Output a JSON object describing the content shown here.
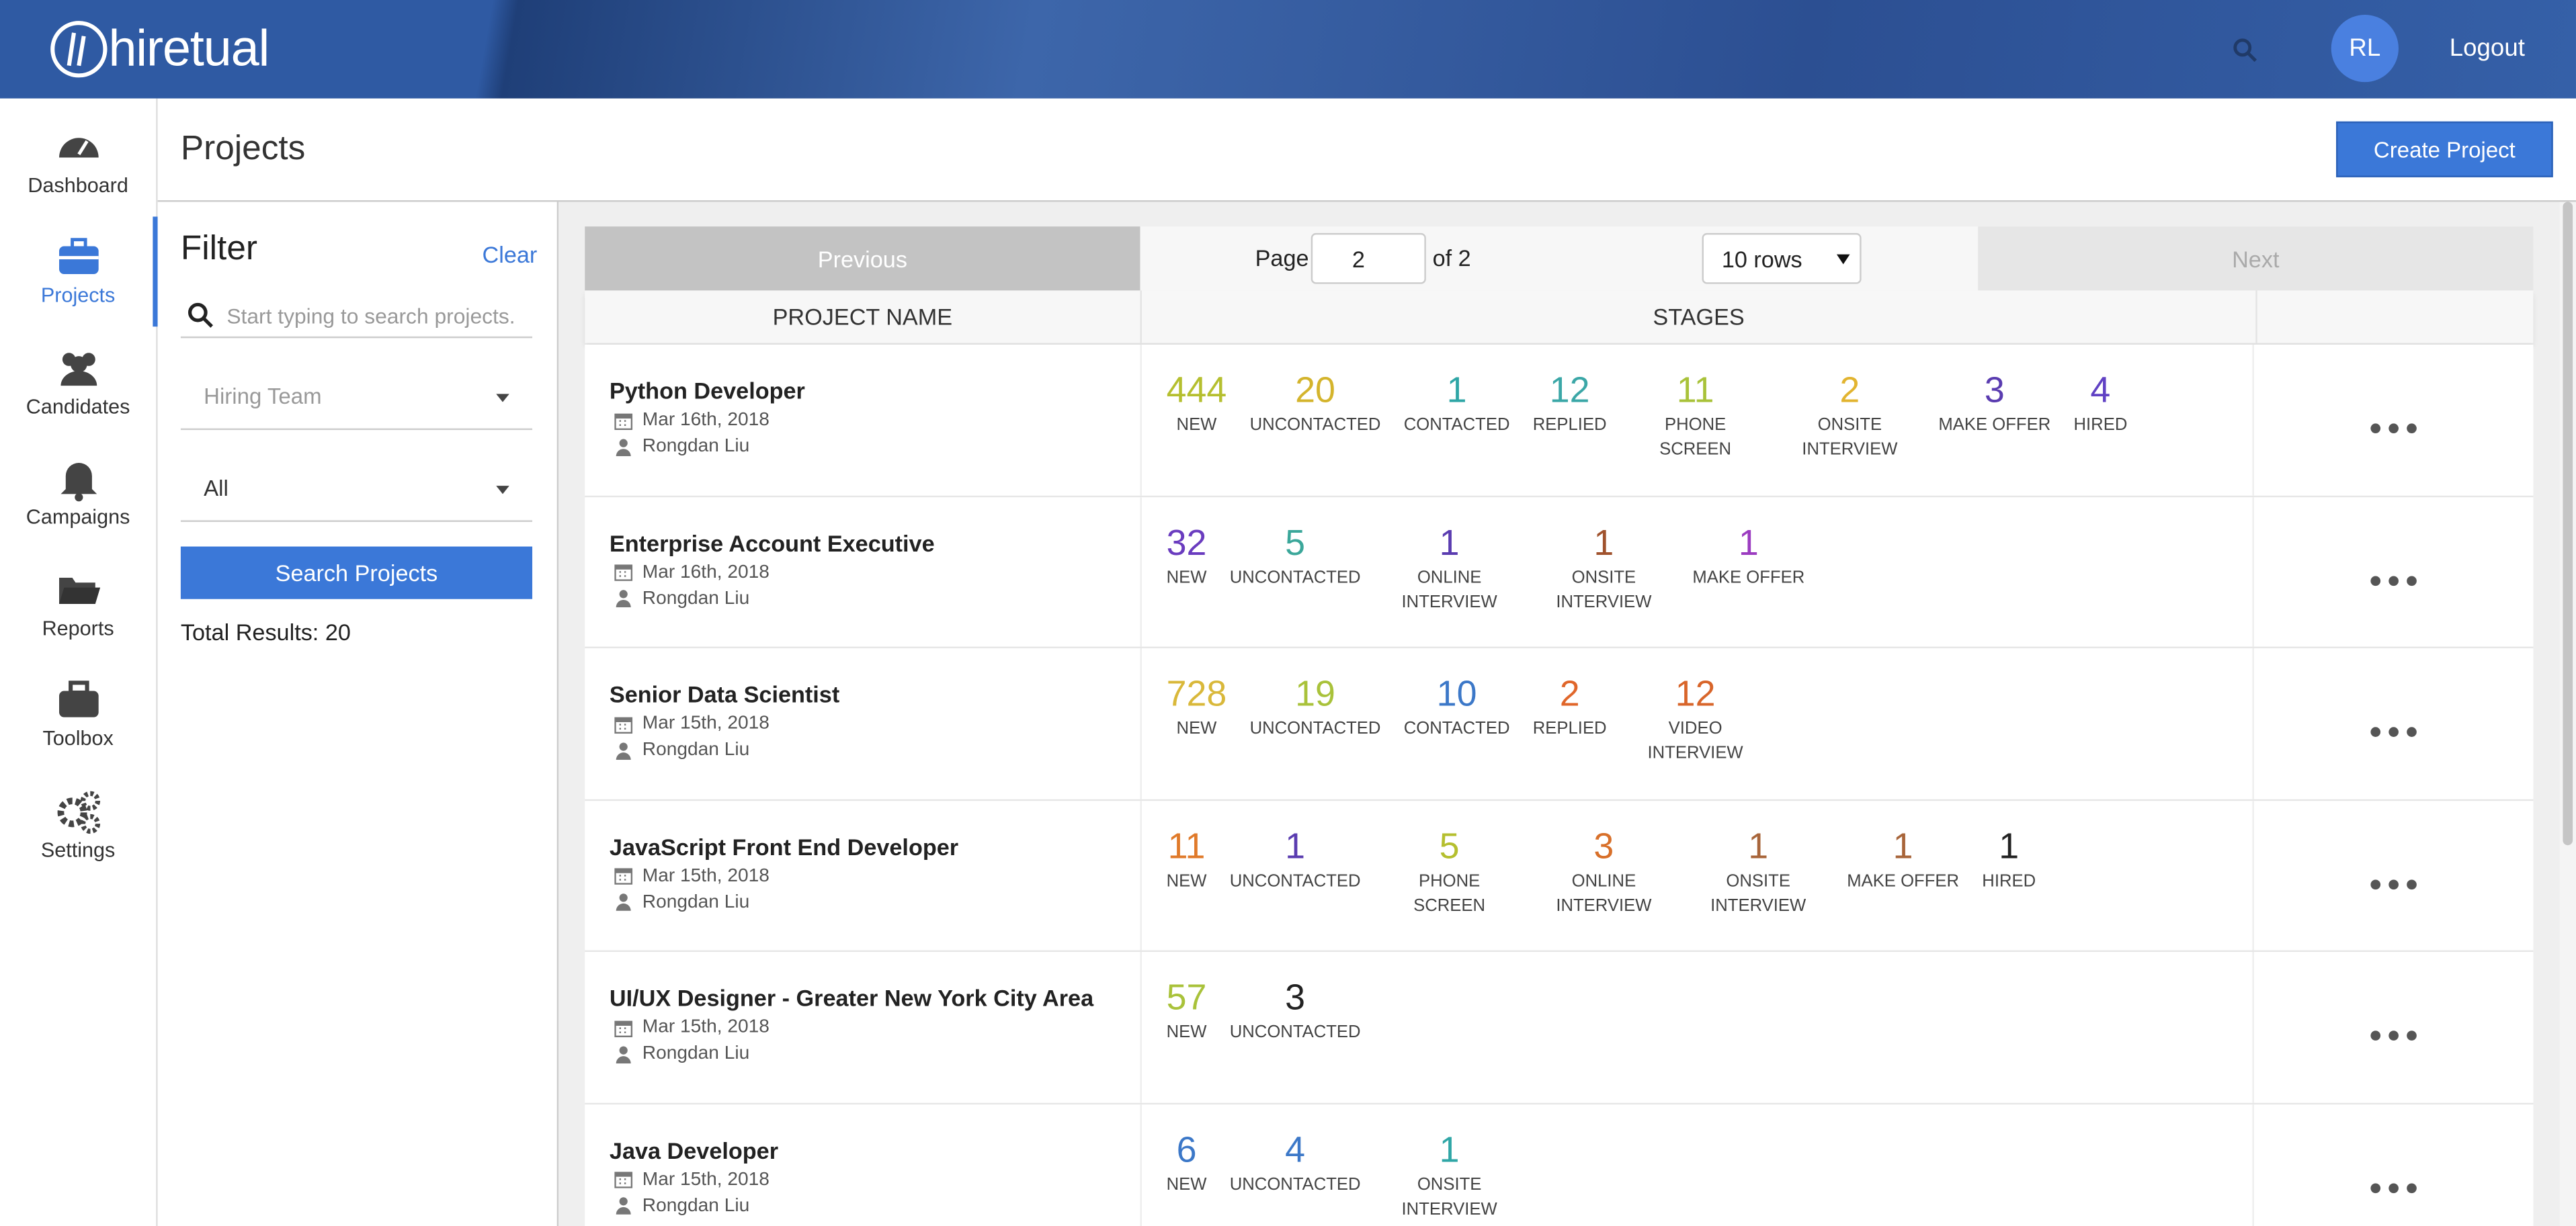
{
  "header": {
    "logo": "hiretual",
    "initials": "RL",
    "logout": "Logout"
  },
  "sidebar": [
    "Dashboard",
    "Projects",
    "Candidates",
    "Campaigns",
    "Reports",
    "Toolbox",
    "Settings"
  ],
  "sidebar_active": 1,
  "page": {
    "title": "Projects",
    "create_button": "Create Project"
  },
  "filter": {
    "title": "Filter",
    "clear": "Clear",
    "search_placeholder": "Start typing to search projects.",
    "hiring_team": "Hiring Team",
    "status": "All",
    "search_button": "Search Projects",
    "total": "Total Results: 20"
  },
  "pagination": {
    "previous": "Previous",
    "page_label": "Page",
    "page": "2",
    "of": "of 2",
    "rows": "10 rows",
    "next": "Next"
  },
  "table": {
    "headers": [
      "PROJECT NAME",
      "STAGES"
    ],
    "rows": [
      {
        "name": "Python Developer",
        "date": "Mar 16th, 2018",
        "owner": "Rongdan Liu",
        "stages": [
          {
            "count": 444,
            "label": "NEW",
            "color": "#b5bf2f"
          },
          {
            "count": 20,
            "label": "UNCONTACTED",
            "color": "#d4b42c"
          },
          {
            "count": 1,
            "label": "CONTACTED",
            "color": "#2fa6a6"
          },
          {
            "count": 12,
            "label": "REPLIED",
            "color": "#3ba7a7"
          },
          {
            "count": 11,
            "label": "PHONE SCREEN",
            "color": "#a9c23a"
          },
          {
            "count": 2,
            "label": "ONSITE INTERVIEW",
            "color": "#e2b430"
          },
          {
            "count": 3,
            "label": "MAKE OFFER",
            "color": "#5a3cb0"
          },
          {
            "count": 4,
            "label": "HIRED",
            "color": "#6142c4"
          }
        ]
      },
      {
        "name": "Enterprise Account Executive",
        "date": "Mar 16th, 2018",
        "owner": "Rongdan Liu",
        "stages": [
          {
            "count": 32,
            "label": "NEW",
            "color": "#6a3cbf"
          },
          {
            "count": 5,
            "label": "UNCONTACTED",
            "color": "#3ba79a"
          },
          {
            "count": 1,
            "label": "ONLINE INTERVIEW",
            "color": "#5a3cb0"
          },
          {
            "count": 1,
            "label": "ONSITE INTERVIEW",
            "color": "#a0522d"
          },
          {
            "count": 1,
            "label": "MAKE OFFER",
            "color": "#9b3cc0"
          }
        ]
      },
      {
        "name": "Senior Data Scientist",
        "date": "Mar 15th, 2018",
        "owner": "Rongdan Liu",
        "stages": [
          {
            "count": 728,
            "label": "NEW",
            "color": "#d9b83a"
          },
          {
            "count": 19,
            "label": "UNCONTACTED",
            "color": "#a9c23a"
          },
          {
            "count": 10,
            "label": "CONTACTED",
            "color": "#3c78c8"
          },
          {
            "count": 2,
            "label": "REPLIED",
            "color": "#e0662a"
          },
          {
            "count": 12,
            "label": "VIDEO INTERVIEW",
            "color": "#d8652a"
          }
        ]
      },
      {
        "name": "JavaScript Front End Developer",
        "date": "Mar 15th, 2018",
        "owner": "Rongdan Liu",
        "stages": [
          {
            "count": 11,
            "label": "NEW",
            "color": "#e07a2a"
          },
          {
            "count": 1,
            "label": "UNCONTACTED",
            "color": "#5a3cb0"
          },
          {
            "count": 5,
            "label": "PHONE SCREEN",
            "color": "#b5bf2f"
          },
          {
            "count": 3,
            "label": "ONLINE INTERVIEW",
            "color": "#d8702a"
          },
          {
            "count": 1,
            "label": "ONSITE INTERVIEW",
            "color": "#a8653a"
          },
          {
            "count": 1,
            "label": "MAKE OFFER",
            "color": "#a8653a"
          },
          {
            "count": 1,
            "label": "HIRED",
            "color": "#222222"
          }
        ]
      },
      {
        "name": "UI/UX Designer - Greater New York City Area",
        "date": "Mar 15th, 2018",
        "owner": "Rongdan Liu",
        "stages": [
          {
            "count": 57,
            "label": "NEW",
            "color": "#a9c23a"
          },
          {
            "count": 3,
            "label": "UNCONTACTED",
            "color": "#222222"
          }
        ]
      },
      {
        "name": "Java Developer",
        "date": "Mar 15th, 2018",
        "owner": "Rongdan Liu",
        "stages": [
          {
            "count": 6,
            "label": "NEW",
            "color": "#3c78c8"
          },
          {
            "count": 4,
            "label": "UNCONTACTED",
            "color": "#3c78c8"
          },
          {
            "count": 1,
            "label": "ONSITE INTERVIEW",
            "color": "#2fa6a6"
          }
        ]
      }
    ]
  }
}
